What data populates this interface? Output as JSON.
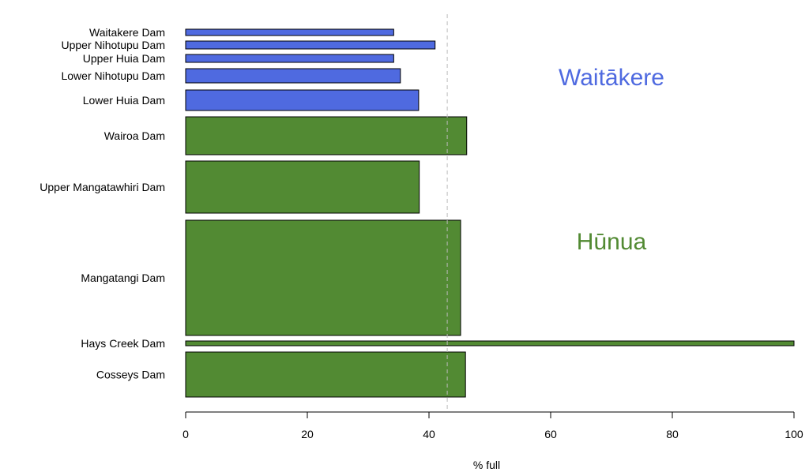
{
  "chart_data": {
    "type": "bar",
    "orientation": "horizontal",
    "title": "",
    "xlabel": "% full",
    "ylabel": "",
    "xlim": [
      0,
      100
    ],
    "xticks": [
      0,
      20,
      40,
      60,
      80,
      100
    ],
    "grid": false,
    "reference_line": {
      "value": 43,
      "style": "dashed",
      "color": "#bbbbbb"
    },
    "colors": {
      "Waitākere": "#4f6ae0",
      "Hūnua": "#528a33"
    },
    "groups": [
      {
        "name": "Waitākere",
        "color": "#4f6ae0"
      },
      {
        "name": "Hūnua",
        "color": "#528a33"
      }
    ],
    "bars": [
      {
        "label": "Waitakere Dam",
        "value": 34.2,
        "group": "Waitākere"
      },
      {
        "label": "Upper Nihotupu Dam",
        "value": 41.0,
        "group": "Waitākere"
      },
      {
        "label": "Upper Huia Dam",
        "value": 34.2,
        "group": "Waitākere"
      },
      {
        "label": "Lower Nihotupu Dam",
        "value": 35.3,
        "group": "Waitākere"
      },
      {
        "label": "Lower Huia Dam",
        "value": 38.3,
        "group": "Waitākere"
      },
      {
        "label": "Wairoa Dam",
        "value": 46.2,
        "group": "Hūnua"
      },
      {
        "label": "Upper Mangatawhiri Dam",
        "value": 38.4,
        "group": "Hūnua"
      },
      {
        "label": "Mangatangi Dam",
        "value": 45.2,
        "group": "Hūnua"
      },
      {
        "label": "Hays Creek Dam",
        "value": 100,
        "group": "Hūnua"
      },
      {
        "label": "Cosseys Dam",
        "value": 46.0,
        "group": "Hūnua"
      }
    ]
  }
}
